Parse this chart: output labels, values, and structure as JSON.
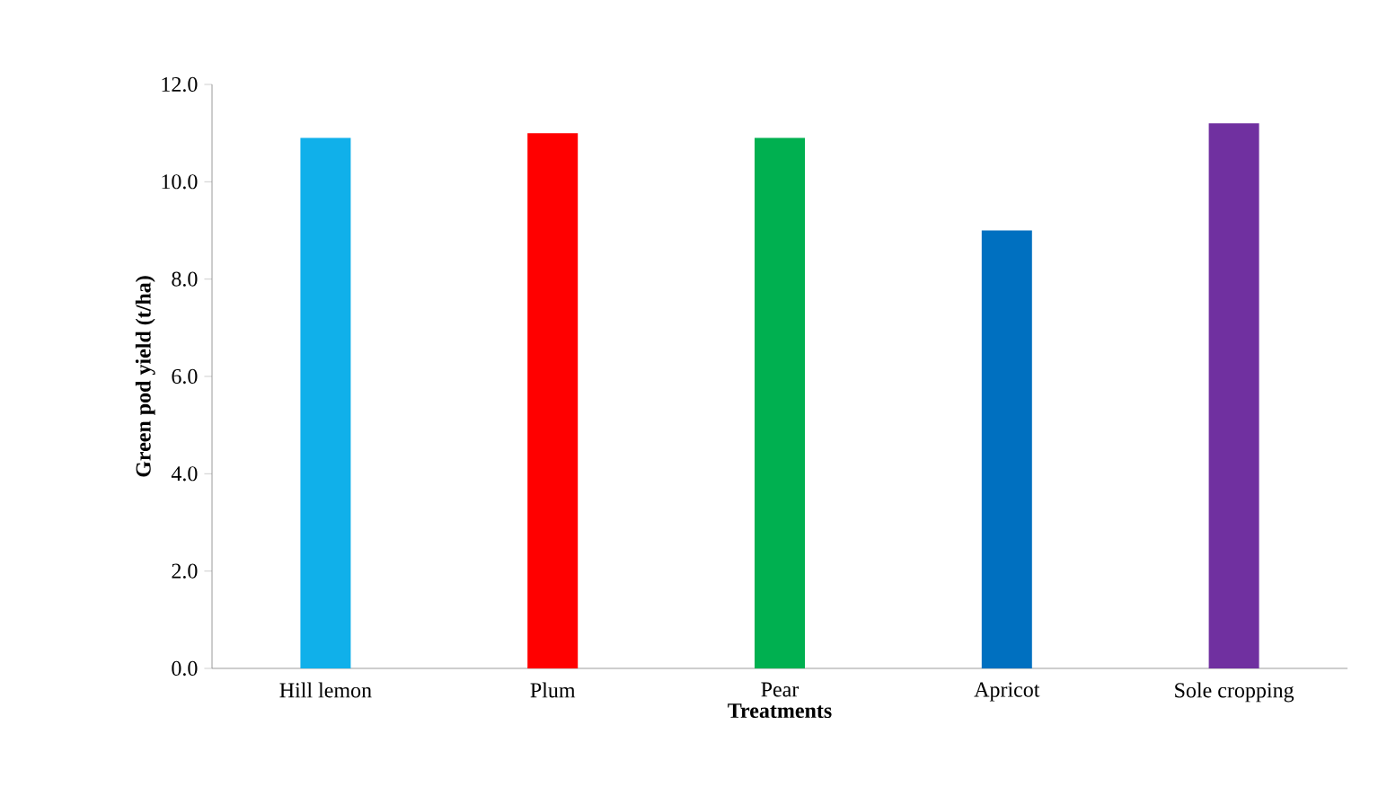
{
  "chart_data": {
    "type": "bar",
    "xlabel": "Treatments",
    "ylabel": "Green pod yield (t/ha)",
    "categories": [
      "Hill lemon",
      "Plum",
      "Pear",
      "Apricot",
      "Sole cropping"
    ],
    "values": [
      10.9,
      11.0,
      10.9,
      9.0,
      11.2
    ],
    "colors": [
      "#10b0ea",
      "#ff0000",
      "#00b050",
      "#0070c0",
      "#7030a0"
    ],
    "ylim": [
      0,
      12
    ],
    "yticks": [
      {
        "value": 0,
        "label": "0.0"
      },
      {
        "value": 2,
        "label": "2.0"
      },
      {
        "value": 4,
        "label": "4.0"
      },
      {
        "value": 6,
        "label": "6.0"
      },
      {
        "value": 8,
        "label": "8.0"
      },
      {
        "value": 10,
        "label": "10.0"
      },
      {
        "value": 12,
        "label": "12.0"
      }
    ]
  }
}
